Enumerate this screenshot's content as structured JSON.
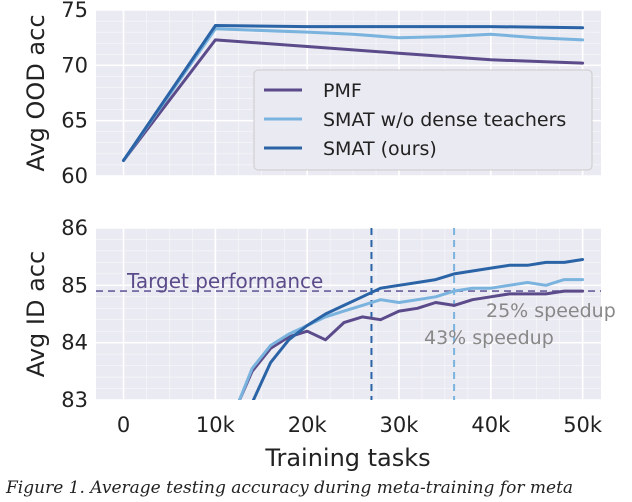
{
  "chart_data": [
    {
      "type": "line",
      "ylabel": "Avg OOD acc",
      "ylim": [
        60,
        75
      ],
      "yticks": [
        60,
        65,
        70,
        75
      ],
      "xlim": [
        -3000,
        52000
      ],
      "grid": true,
      "legend_position": "center-right",
      "series": [
        {
          "name": "PMF",
          "color": "#5b4b8a",
          "x": [
            0,
            10000,
            20000,
            30000,
            40000,
            50000
          ],
          "y": [
            61.4,
            72.3,
            71.7,
            71.1,
            70.5,
            70.2
          ]
        },
        {
          "name": "SMAT w/o dense teachers",
          "color": "#7ab3de",
          "x": [
            0,
            10000,
            20000,
            25000,
            30000,
            35000,
            40000,
            45000,
            50000
          ],
          "y": [
            61.4,
            73.3,
            73.0,
            72.8,
            72.5,
            72.6,
            72.8,
            72.5,
            72.3
          ]
        },
        {
          "name": "SMAT (ours)",
          "color": "#2b64a6",
          "x": [
            0,
            10000,
            20000,
            30000,
            40000,
            50000
          ],
          "y": [
            61.4,
            73.6,
            73.5,
            73.5,
            73.5,
            73.4
          ]
        }
      ]
    },
    {
      "type": "line",
      "ylabel": "Avg ID acc",
      "xlabel": "Training tasks",
      "ylim": [
        83,
        86
      ],
      "yticks": [
        83,
        84,
        85,
        86
      ],
      "xticks": [
        "0",
        "10k",
        "20k",
        "30k",
        "40k",
        "50k"
      ],
      "xtick_values": [
        0,
        10000,
        20000,
        30000,
        40000,
        50000
      ],
      "xlim": [
        -3000,
        52000
      ],
      "grid": true,
      "target": {
        "value": 84.9,
        "label": "Target performance"
      },
      "vlines": [
        {
          "x": 27000,
          "color": "#2b64a6"
        },
        {
          "x": 36000,
          "color": "#7ab3de"
        }
      ],
      "annotations": [
        {
          "text": "25% speedup"
        },
        {
          "text": "43% speedup"
        }
      ],
      "series": [
        {
          "name": "PMF",
          "color": "#5b4b8a",
          "x": [
            12500,
            14000,
            16000,
            18000,
            20000,
            22000,
            24000,
            26000,
            28000,
            30000,
            32000,
            34000,
            36000,
            38000,
            40000,
            42000,
            44000,
            46000,
            48000,
            50000
          ],
          "y": [
            82.95,
            83.5,
            83.9,
            84.1,
            84.2,
            84.05,
            84.35,
            84.45,
            84.4,
            84.55,
            84.6,
            84.7,
            84.65,
            84.75,
            84.8,
            84.85,
            84.85,
            84.85,
            84.9,
            84.9
          ]
        },
        {
          "name": "SMAT w/o dense teachers",
          "color": "#7ab3de",
          "x": [
            12500,
            14000,
            16000,
            18000,
            20000,
            22000,
            24000,
            26000,
            28000,
            30000,
            32000,
            34000,
            36000,
            38000,
            40000,
            42000,
            44000,
            46000,
            48000,
            50000
          ],
          "y": [
            82.95,
            83.55,
            83.95,
            84.15,
            84.3,
            84.45,
            84.55,
            84.65,
            84.75,
            84.7,
            84.75,
            84.8,
            84.9,
            84.95,
            84.95,
            85.0,
            85.05,
            85.0,
            85.1,
            85.1
          ]
        },
        {
          "name": "SMAT (ours)",
          "color": "#2b64a6",
          "x": [
            14000,
            16000,
            18000,
            20000,
            22000,
            24000,
            26000,
            28000,
            30000,
            32000,
            34000,
            36000,
            38000,
            40000,
            42000,
            44000,
            46000,
            48000,
            50000
          ],
          "y": [
            82.95,
            83.65,
            84.05,
            84.3,
            84.5,
            84.65,
            84.8,
            84.95,
            85.0,
            85.05,
            85.1,
            85.2,
            85.25,
            85.3,
            85.35,
            85.35,
            85.4,
            85.4,
            85.45
          ]
        }
      ]
    }
  ],
  "caption": "Figure 1. Average testing accuracy during meta-training for meta"
}
